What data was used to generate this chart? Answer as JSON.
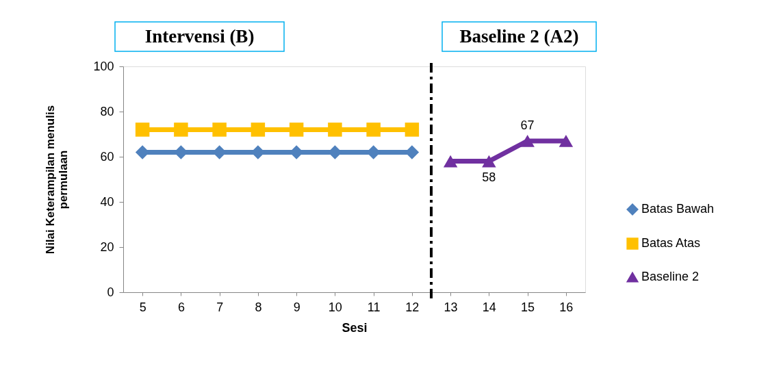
{
  "chart_data": {
    "type": "line",
    "xlabel": "Sesi",
    "ylabel": "Nilai Keterampilan menulis\npermulaan",
    "xlim": [
      4.5,
      16.5
    ],
    "xticks": [
      5,
      6,
      7,
      8,
      9,
      10,
      11,
      12,
      13,
      14,
      15,
      16
    ],
    "ylim": [
      0,
      100
    ],
    "yticks": [
      0,
      20,
      40,
      60,
      80,
      100
    ],
    "grid": false,
    "legend": "right",
    "annotations": [
      "Intervensi (B)",
      "Baseline 2 (A2)"
    ],
    "ref_lines": [
      {
        "axis": "x",
        "value": 12.5,
        "color": "#000000",
        "line_style": "dashdot"
      }
    ],
    "series": [
      {
        "name": "Batas Bawah",
        "color": "#4f81bd",
        "marker": "diamond",
        "x": [
          5,
          6,
          7,
          8,
          9,
          10,
          11,
          12
        ],
        "values": [
          62,
          62,
          62,
          62,
          62,
          62,
          62,
          62
        ]
      },
      {
        "name": "Batas Atas",
        "color": "#ffc000",
        "marker": "square",
        "x": [
          5,
          6,
          7,
          8,
          9,
          10,
          11,
          12
        ],
        "values": [
          72,
          72,
          72,
          72,
          72,
          72,
          72,
          72
        ]
      },
      {
        "name": "Baseline 2",
        "color": "#7030a0",
        "marker": "triangle",
        "x": [
          13,
          14,
          15,
          16
        ],
        "values": [
          58,
          58,
          67,
          67
        ],
        "value_labels": [
          null,
          "58",
          "67",
          null
        ]
      }
    ]
  }
}
